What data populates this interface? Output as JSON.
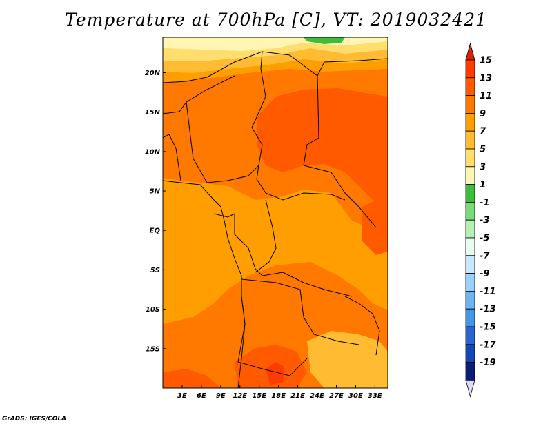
{
  "title": "Temperature at 700hPa [C], VT: 2019032421",
  "credit": "GrADS: IGES/COLA",
  "map": {
    "lon_ticks": [
      {
        "lon": 3,
        "label": "3E"
      },
      {
        "lon": 6,
        "label": "6E"
      },
      {
        "lon": 9,
        "label": "9E"
      },
      {
        "lon": 12,
        "label": "12E"
      },
      {
        "lon": 15,
        "label": "15E"
      },
      {
        "lon": 18,
        "label": "18E"
      },
      {
        "lon": 21,
        "label": "21E"
      },
      {
        "lon": 24,
        "label": "24E"
      },
      {
        "lon": 27,
        "label": "27E"
      },
      {
        "lon": 30,
        "label": "30E"
      },
      {
        "lon": 33,
        "label": "33E"
      }
    ],
    "lat_ticks": [
      {
        "lat": 20,
        "label": "20N"
      },
      {
        "lat": 15,
        "label": "15N"
      },
      {
        "lat": 10,
        "label": "10N"
      },
      {
        "lat": 5,
        "label": "5N"
      },
      {
        "lat": 0,
        "label": "EQ"
      },
      {
        "lat": -5,
        "label": "5S"
      },
      {
        "lat": -10,
        "label": "10S"
      },
      {
        "lat": -15,
        "label": "15S"
      }
    ],
    "lon_range": [
      0,
      35
    ],
    "lat_range": [
      -20,
      24.5
    ],
    "base_color": "#ff9e00"
  },
  "colorbar": {
    "labels": [
      "15",
      "13",
      "11",
      "9",
      "7",
      "5",
      "3",
      "1",
      "-1",
      "-3",
      "-5",
      "-7",
      "-9",
      "-11",
      "-13",
      "-15",
      "-17",
      "-19"
    ],
    "colors": [
      "#ff3b00",
      "#ff5a00",
      "#ff7800",
      "#ff9e00",
      "#ffbc33",
      "#ffde6e",
      "#fff6b3",
      "#3cbe3c",
      "#78dc78",
      "#b4f0b4",
      "#e8fcf0",
      "#c8e8ff",
      "#96d2fa",
      "#6eb4f0",
      "#4696e6",
      "#2864d2",
      "#1446b4",
      "#0a1e78"
    ],
    "top_arrow_color": "#e11e00",
    "bottom_arrow_color": "#dcdcfa"
  }
}
